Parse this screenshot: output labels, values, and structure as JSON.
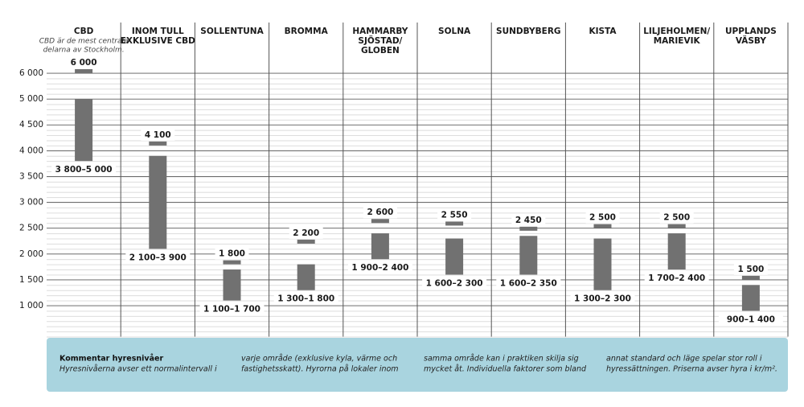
{
  "chart_data": {
    "type": "range_bar",
    "categories": [
      [
        "CBD"
      ],
      [
        "INOM TULL",
        "EXKLUSIVE CBD"
      ],
      [
        "SOLLENTUNA"
      ],
      [
        "BROMMA"
      ],
      [
        "HAMMARBY",
        "SJÖSTAD/",
        "GLOBEN"
      ],
      [
        "SOLNA"
      ],
      [
        "SUNDBYBERG"
      ],
      [
        "KISTA"
      ],
      [
        "LILJEHOLMEN/",
        "MARIEVIK"
      ],
      [
        "UPPLANDS",
        "VÄSBY"
      ]
    ],
    "category_note": [
      "CBD är de mest centrala",
      "delarna av Stockholm."
    ],
    "lows": [
      3800,
      2100,
      1100,
      1300,
      1900,
      1600,
      1600,
      1300,
      1700,
      900
    ],
    "highs": [
      5000,
      3900,
      1700,
      1800,
      2400,
      2300,
      2350,
      2300,
      2400,
      1400
    ],
    "range_labels": [
      "3 800–5 000",
      "2 100–3 900",
      "1 100–1 700",
      "1 300–1 800",
      "1 900–2 400",
      "1 600–2 300",
      "1 600–2 350",
      "1 300–2 300",
      "1 700–2 400",
      "900–1 400"
    ],
    "tops": [
      6000,
      4100,
      1800,
      2200,
      2600,
      2550,
      2450,
      2500,
      2500,
      1500
    ],
    "top_labels": [
      "6 000",
      "4 100",
      "1 800",
      "2 200",
      "2 600",
      "2 550",
      "2 450",
      "2 500",
      "2 500",
      "1 500"
    ],
    "color": "#717171",
    "ylim": [
      400,
      6000
    ],
    "yticks": [
      {
        "value": 6000,
        "label": "6 000"
      },
      {
        "value": 5000,
        "label": "5 000"
      },
      {
        "value": 4500,
        "label": "4 500"
      },
      {
        "value": 4000,
        "label": "4 000"
      },
      {
        "value": 3500,
        "label": "3 500"
      },
      {
        "value": 3000,
        "label": "3 000"
      },
      {
        "value": 2500,
        "label": "2 500"
      },
      {
        "value": 2000,
        "label": "2 000"
      },
      {
        "value": 1500,
        "label": "1 500"
      },
      {
        "value": 1000,
        "label": "1 000"
      }
    ],
    "grid": true
  },
  "comment": {
    "title": "Kommentar hyresnivåer",
    "columns": [
      [
        "Hyresnivåerna avser ett normalintervall i"
      ],
      [
        "varje område (exklusive kyla, värme och",
        "fastighetsskatt). Hyrorna på lokaler inom"
      ],
      [
        "samma område kan i praktiken skilja sig",
        "mycket åt. Individuella faktorer som bland"
      ],
      [
        "annat standard och läge spelar stor roll i",
        "hyressättningen. Priserna avser hyra i kr/m²."
      ]
    ]
  }
}
